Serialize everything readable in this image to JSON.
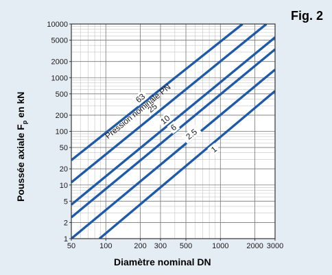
{
  "figure_label": "Fig. 2",
  "chart_data": {
    "type": "line",
    "title": "",
    "xlabel": "Diamètre nominal DN",
    "ylabel_main": "Poussée axiale F",
    "ylabel_sub": "p",
    "ylabel_tail": " en kN",
    "x_scale": "log",
    "y_scale": "log",
    "xlim": [
      50,
      3000
    ],
    "ylim": [
      1,
      10000
    ],
    "grid": true,
    "x_ticks": [
      50,
      100,
      200,
      300,
      500,
      1000,
      2000,
      3000
    ],
    "x_tick_labels": [
      "50",
      "100",
      "200",
      "300",
      "500",
      "1000",
      "2000",
      "3000"
    ],
    "y_ticks": [
      1,
      2,
      5,
      10,
      20,
      50,
      100,
      200,
      500,
      1000,
      2000,
      5000,
      10000
    ],
    "y_tick_labels": [
      "1",
      "2",
      "5",
      "10",
      "20",
      "50",
      "100",
      "200",
      "500",
      "1000",
      "2000",
      "5000",
      "10000"
    ],
    "series_title": "Pression nominale PN",
    "line_color": "#1f5aa8",
    "series": [
      {
        "name": "63",
        "x": [
          50,
          1560
        ],
        "y": [
          29,
          10000
        ],
        "label_at": [
          200,
          415
        ]
      },
      {
        "name": "25",
        "x": [
          50,
          2520
        ],
        "y": [
          11.2,
          10000
        ],
        "label_at": [
          255,
          272
        ]
      },
      {
        "name": "10",
        "x": [
          50,
          3000
        ],
        "y": [
          4.3,
          5630
        ],
        "label_at": [
          330,
          164
        ]
      },
      {
        "name": "6",
        "x": [
          50,
          3000
        ],
        "y": [
          2.5,
          3380
        ],
        "label_at": [
          390,
          118
        ]
      },
      {
        "name": "2.5",
        "x": [
          50,
          3000
        ],
        "y": [
          1.0,
          1415
        ],
        "label_at": [
          560,
          88
        ]
      },
      {
        "name": "1",
        "x": [
          88,
          3000
        ],
        "y": [
          1.0,
          565
        ],
        "label_at": [
          880,
          46
        ]
      }
    ]
  }
}
